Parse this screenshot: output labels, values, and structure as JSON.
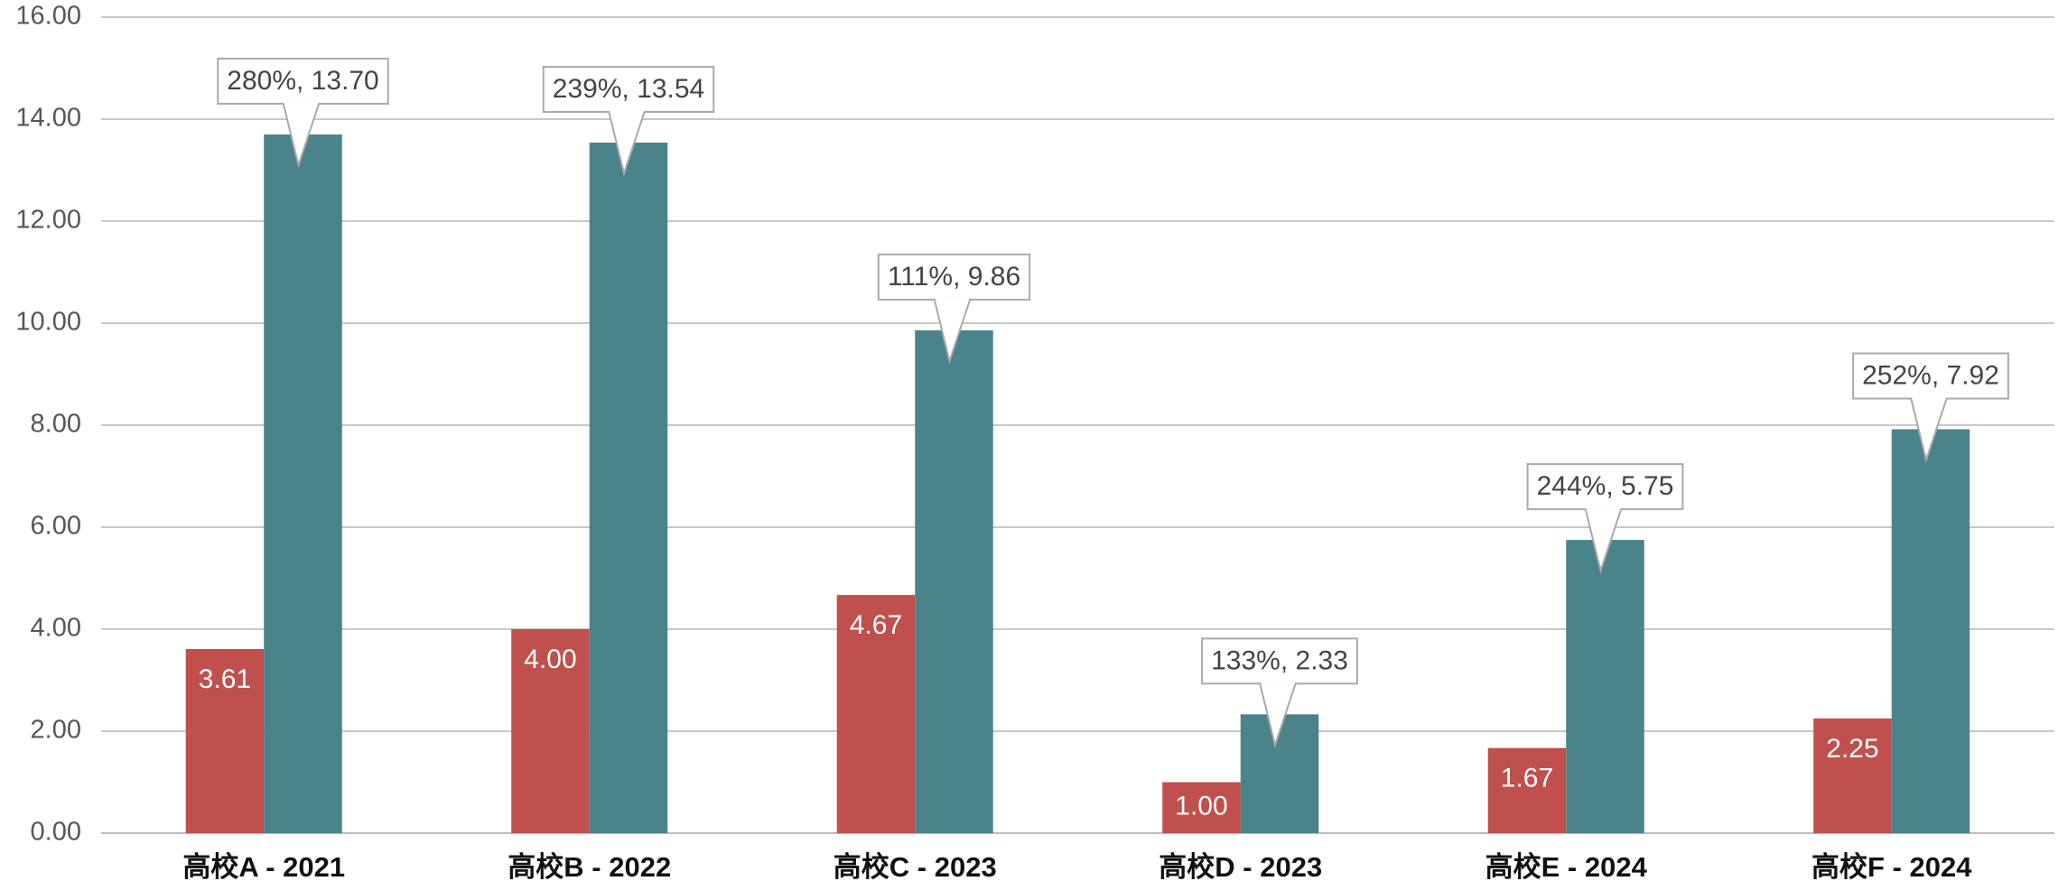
{
  "chart_data": {
    "type": "bar",
    "categories": [
      "高校A - 2021",
      "高校B - 2022",
      "高校C - 2023",
      "高校D - 2023",
      "高校E - 2024",
      "高校F - 2024"
    ],
    "series": [
      {
        "color": "#c0504d",
        "values": [
          3.61,
          4.0,
          4.67,
          1.0,
          1.67,
          2.25
        ],
        "value_labels": [
          "3.61",
          "4.00",
          "4.67",
          "1.00",
          "1.67",
          "2.25"
        ]
      },
      {
        "color": "#4b838b",
        "values": [
          13.7,
          13.54,
          9.86,
          2.33,
          5.75,
          7.92
        ],
        "value_labels": [
          "280%, 13.70",
          "239%, 13.54",
          "111%, 9.86",
          "133%, 2.33",
          "244%, 5.75",
          "252%, 7.92"
        ]
      }
    ],
    "ylim": [
      0,
      16
    ],
    "yticks": [
      {
        "value": 0,
        "label": "0.00"
      },
      {
        "value": 2,
        "label": "2.00"
      },
      {
        "value": 4,
        "label": "4.00"
      },
      {
        "value": 6,
        "label": "6.00"
      },
      {
        "value": 8,
        "label": "8.00"
      },
      {
        "value": 10,
        "label": "10.00"
      },
      {
        "value": 12,
        "label": "12.00"
      },
      {
        "value": 14,
        "label": "14.00"
      },
      {
        "value": 16,
        "label": "16.00"
      }
    ],
    "grid": true
  }
}
